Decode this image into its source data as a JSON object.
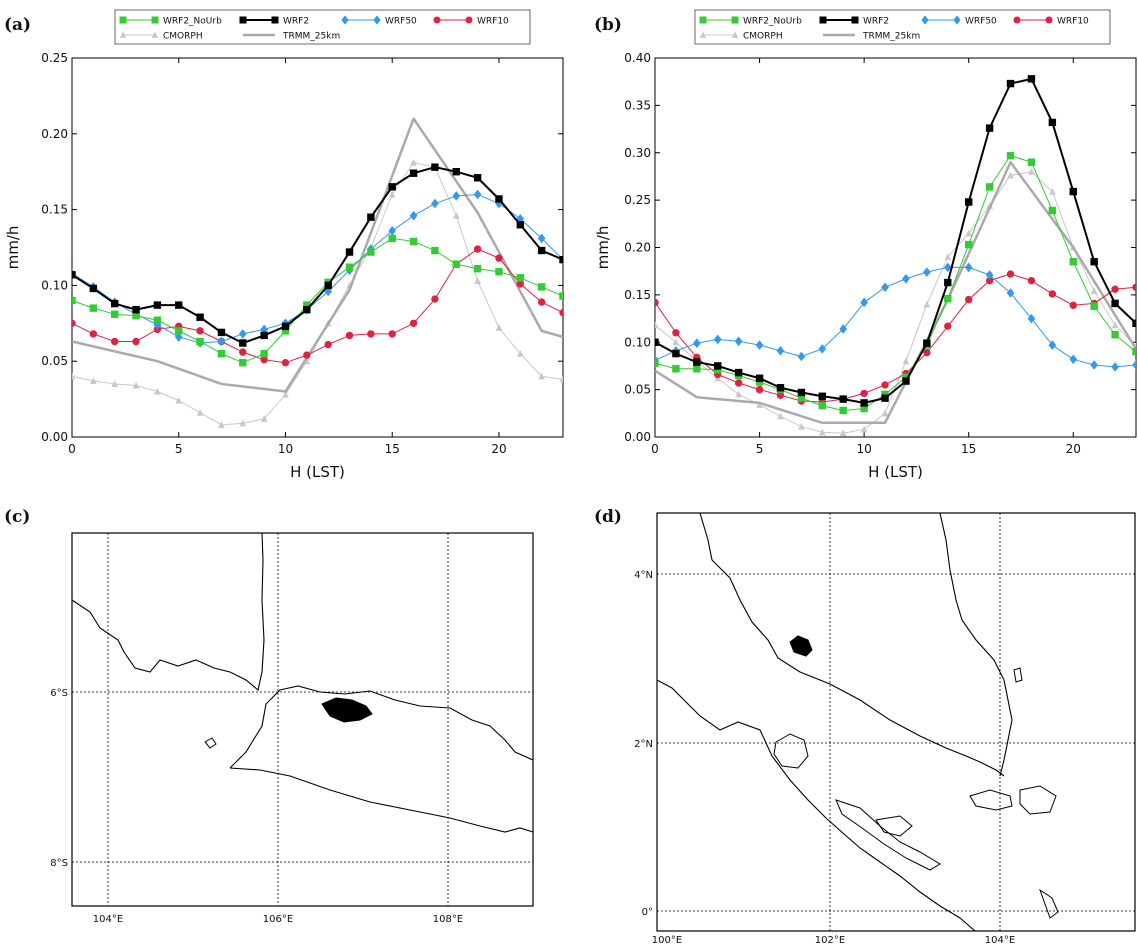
{
  "panel_labels": {
    "a": "(a)",
    "b": "(b)",
    "c": "(c)",
    "d": "(d)"
  },
  "chart_data": [
    {
      "type": "line",
      "panel": "(a)",
      "xlabel": "H (LST)",
      "ylabel": "mm/h",
      "xlim": [
        0,
        23
      ],
      "ylim": [
        0,
        0.25
      ],
      "xticks": [
        0,
        5,
        10,
        15,
        20
      ],
      "yticks": [
        0.0,
        0.05,
        0.1,
        0.15,
        0.2,
        0.25
      ],
      "ytick_labels": [
        "0.00",
        "0.05",
        "0.10",
        "0.15",
        "0.20",
        "0.25"
      ],
      "legend_position": "top",
      "series": [
        {
          "name": "WRF2_NoUrb",
          "color": "#33cc33",
          "marker": "square",
          "width": 1,
          "x": [
            0,
            1,
            2,
            3,
            4,
            5,
            6,
            7,
            8,
            9,
            10,
            11,
            12,
            13,
            14,
            15,
            16,
            17,
            18,
            19,
            20,
            21,
            22,
            23
          ],
          "y": [
            0.09,
            0.085,
            0.081,
            0.08,
            0.077,
            0.07,
            0.063,
            0.055,
            0.049,
            0.055,
            0.07,
            0.087,
            0.102,
            0.112,
            0.122,
            0.131,
            0.129,
            0.123,
            0.114,
            0.111,
            0.109,
            0.105,
            0.099,
            0.093
          ]
        },
        {
          "name": "WRF2",
          "color": "#000000",
          "marker": "square",
          "width": 2,
          "x": [
            0,
            1,
            2,
            3,
            4,
            5,
            6,
            7,
            8,
            9,
            10,
            11,
            12,
            13,
            14,
            15,
            16,
            17,
            18,
            19,
            20,
            21,
            22,
            23
          ],
          "y": [
            0.107,
            0.098,
            0.088,
            0.084,
            0.087,
            0.087,
            0.079,
            0.069,
            0.062,
            0.067,
            0.073,
            0.084,
            0.1,
            0.122,
            0.145,
            0.165,
            0.174,
            0.178,
            0.175,
            0.171,
            0.157,
            0.14,
            0.123,
            0.117
          ]
        },
        {
          "name": "WRF50",
          "color": "#3399ee",
          "marker": "diamond",
          "width": 1,
          "x": [
            0,
            1,
            2,
            3,
            4,
            5,
            6,
            7,
            8,
            9,
            10,
            11,
            12,
            13,
            14,
            15,
            16,
            17,
            18,
            19,
            20,
            21,
            22,
            23
          ],
          "y": [
            0.108,
            0.099,
            0.089,
            0.081,
            0.074,
            0.066,
            0.062,
            0.063,
            0.068,
            0.071,
            0.075,
            0.084,
            0.096,
            0.11,
            0.124,
            0.136,
            0.146,
            0.154,
            0.159,
            0.16,
            0.154,
            0.144,
            0.131,
            0.117
          ]
        },
        {
          "name": "WRF10",
          "color": "#dd2244",
          "marker": "circle",
          "width": 1,
          "x": [
            0,
            1,
            2,
            3,
            4,
            5,
            6,
            7,
            8,
            9,
            10,
            11,
            12,
            13,
            14,
            15,
            16,
            17,
            18,
            19,
            20,
            21,
            22,
            23
          ],
          "y": [
            0.075,
            0.068,
            0.063,
            0.063,
            0.071,
            0.073,
            0.07,
            0.063,
            0.056,
            0.051,
            0.049,
            0.054,
            0.061,
            0.067,
            0.068,
            0.068,
            0.075,
            0.091,
            0.114,
            0.124,
            0.118,
            0.101,
            0.089,
            0.082
          ]
        },
        {
          "name": "CMORPH",
          "color": "#c8c8c8",
          "marker": "triangle",
          "width": 1,
          "x": [
            0,
            1,
            2,
            3,
            4,
            5,
            6,
            7,
            8,
            9,
            10,
            11,
            12,
            13,
            14,
            15,
            16,
            17,
            18,
            19,
            20,
            21,
            22,
            23
          ],
          "y": [
            0.04,
            0.037,
            0.035,
            0.034,
            0.03,
            0.024,
            0.016,
            0.008,
            0.009,
            0.012,
            0.028,
            0.05,
            0.075,
            0.1,
            0.125,
            0.16,
            0.181,
            0.178,
            0.146,
            0.103,
            0.072,
            0.055,
            0.04,
            0.038
          ]
        },
        {
          "name": "TRMM_25km",
          "color": "#aaaaaa",
          "marker": "none",
          "width": 2.5,
          "x": [
            0,
            4,
            7,
            10,
            13,
            16,
            19,
            22,
            23
          ],
          "y": [
            0.063,
            0.05,
            0.035,
            0.03,
            0.097,
            0.21,
            0.148,
            0.07,
            0.066
          ]
        }
      ]
    },
    {
      "type": "line",
      "panel": "(b)",
      "xlabel": "H (LST)",
      "ylabel": "mm/h",
      "xlim": [
        0,
        23
      ],
      "ylim": [
        0,
        0.4
      ],
      "xticks": [
        0,
        5,
        10,
        15,
        20
      ],
      "yticks": [
        0.0,
        0.05,
        0.1,
        0.15,
        0.2,
        0.25,
        0.3,
        0.35,
        0.4
      ],
      "ytick_labels": [
        "0.00",
        "0.05",
        "0.10",
        "0.15",
        "0.20",
        "0.25",
        "0.30",
        "0.35",
        "0.40"
      ],
      "legend_position": "top",
      "series": [
        {
          "name": "WRF2_NoUrb",
          "color": "#33cc33",
          "marker": "square",
          "width": 1,
          "x": [
            0,
            1,
            2,
            3,
            4,
            5,
            6,
            7,
            8,
            9,
            10,
            11,
            12,
            13,
            14,
            15,
            16,
            17,
            18,
            19,
            20,
            21,
            22,
            23
          ],
          "y": [
            0.078,
            0.072,
            0.072,
            0.071,
            0.065,
            0.058,
            0.05,
            0.041,
            0.033,
            0.028,
            0.03,
            0.045,
            0.063,
            0.097,
            0.146,
            0.203,
            0.264,
            0.297,
            0.29,
            0.239,
            0.185,
            0.138,
            0.108,
            0.09
          ]
        },
        {
          "name": "WRF2",
          "color": "#000000",
          "marker": "square",
          "width": 2,
          "x": [
            0,
            1,
            2,
            3,
            4,
            5,
            6,
            7,
            8,
            9,
            10,
            11,
            12,
            13,
            14,
            15,
            16,
            17,
            18,
            19,
            20,
            21,
            22,
            23
          ],
          "y": [
            0.1,
            0.088,
            0.079,
            0.075,
            0.068,
            0.062,
            0.052,
            0.047,
            0.043,
            0.04,
            0.036,
            0.041,
            0.059,
            0.099,
            0.163,
            0.248,
            0.326,
            0.373,
            0.378,
            0.332,
            0.259,
            0.185,
            0.141,
            0.12
          ]
        },
        {
          "name": "WRF50",
          "color": "#3399ee",
          "marker": "diamond",
          "width": 1,
          "x": [
            0,
            1,
            2,
            3,
            4,
            5,
            6,
            7,
            8,
            9,
            10,
            11,
            12,
            13,
            14,
            15,
            16,
            17,
            18,
            19,
            20,
            21,
            22,
            23
          ],
          "y": [
            0.081,
            0.091,
            0.099,
            0.103,
            0.101,
            0.097,
            0.091,
            0.085,
            0.093,
            0.114,
            0.142,
            0.158,
            0.167,
            0.174,
            0.179,
            0.179,
            0.171,
            0.152,
            0.125,
            0.097,
            0.082,
            0.076,
            0.074,
            0.076
          ]
        },
        {
          "name": "WRF10",
          "color": "#dd2244",
          "marker": "circle",
          "width": 1,
          "x": [
            0,
            1,
            2,
            3,
            4,
            5,
            6,
            7,
            8,
            9,
            10,
            11,
            12,
            13,
            14,
            15,
            16,
            17,
            18,
            19,
            20,
            21,
            22,
            23
          ],
          "y": [
            0.142,
            0.11,
            0.084,
            0.066,
            0.057,
            0.05,
            0.044,
            0.038,
            0.037,
            0.04,
            0.046,
            0.055,
            0.067,
            0.089,
            0.117,
            0.145,
            0.165,
            0.172,
            0.165,
            0.151,
            0.139,
            0.141,
            0.156,
            0.158
          ]
        },
        {
          "name": "CMORPH",
          "color": "#c8c8c8",
          "marker": "triangle",
          "width": 1,
          "x": [
            0,
            1,
            2,
            3,
            4,
            5,
            6,
            7,
            8,
            9,
            10,
            11,
            12,
            13,
            14,
            15,
            16,
            17,
            18,
            19,
            20,
            21,
            22,
            23
          ],
          "y": [
            0.118,
            0.1,
            0.08,
            0.062,
            0.045,
            0.034,
            0.022,
            0.011,
            0.005,
            0.004,
            0.008,
            0.025,
            0.08,
            0.14,
            0.19,
            0.215,
            0.244,
            0.276,
            0.28,
            0.259,
            0.2,
            0.154,
            0.118,
            0.096
          ]
        },
        {
          "name": "TRMM_25km",
          "color": "#aaaaaa",
          "marker": "none",
          "width": 2.5,
          "x": [
            0,
            2,
            5,
            8,
            11,
            14,
            17,
            20,
            23
          ],
          "y": [
            0.07,
            0.042,
            0.036,
            0.015,
            0.015,
            0.145,
            0.29,
            0.2,
            0.093
          ]
        }
      ]
    }
  ],
  "maps": [
    {
      "panel": "(c)",
      "lat_ticks": [
        "6°S",
        "8°S"
      ],
      "lon_ticks": [
        "104°E",
        "106°E",
        "108°E"
      ]
    },
    {
      "panel": "(d)",
      "lat_ticks": [
        "4°N",
        "2°N",
        "0°"
      ],
      "lon_ticks": [
        "100°E",
        "102°E",
        "104°E"
      ]
    }
  ]
}
